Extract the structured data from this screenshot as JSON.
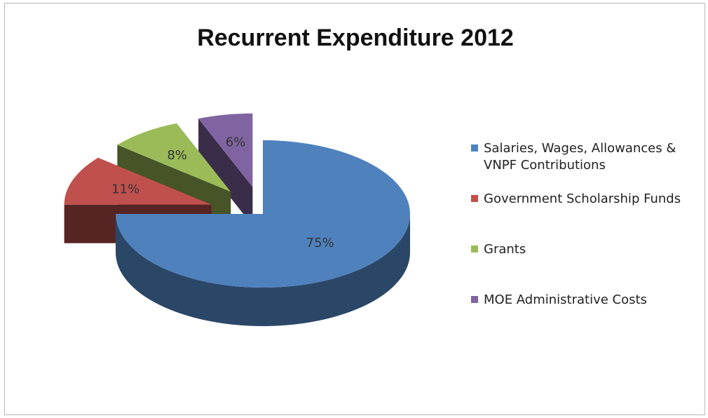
{
  "chart_data": {
    "type": "pie",
    "title": "Recurrent Expenditure 2012",
    "slices": [
      {
        "label": "Salaries, Wages, Allowances & VNPF Contributions",
        "value": 75,
        "display": "75%",
        "color": "#4f81bd"
      },
      {
        "label": "Government Scholarship Funds",
        "value": 11,
        "display": "11%",
        "color": "#c0504d"
      },
      {
        "label": "Grants",
        "value": 8,
        "display": "8%",
        "color": "#9bbb59"
      },
      {
        "label": "MOE Administrative Costs",
        "value": 6,
        "display": "6%",
        "color": "#8064a2"
      }
    ],
    "legend_position": "right",
    "style": "3d-exploded"
  }
}
